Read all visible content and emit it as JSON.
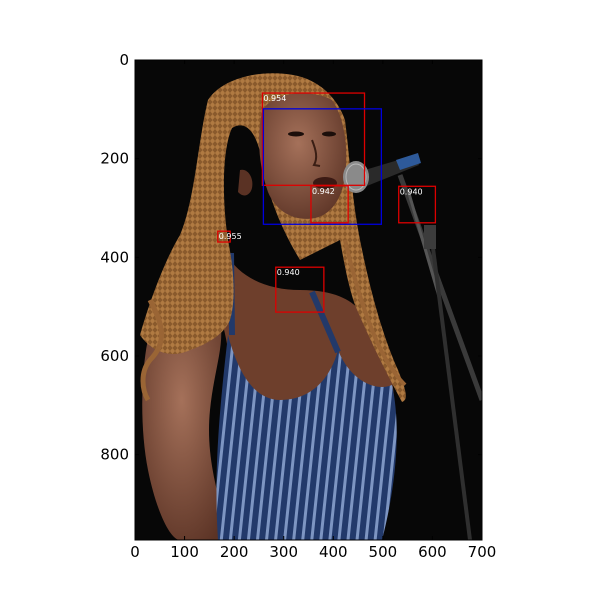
{
  "chart_data": {
    "type": "image-detection-plot",
    "image_content": "photo of a woman with long braided hair in a blue and white striped sleeveless dress singing into a microphone against a dark background",
    "xlim": [
      0,
      700
    ],
    "ylim": [
      973,
      0
    ],
    "xticks": [
      0,
      100,
      200,
      300,
      400,
      500,
      600,
      700
    ],
    "yticks": [
      0,
      200,
      400,
      600,
      800
    ],
    "xtick_labels": [
      "0",
      "100",
      "200",
      "300",
      "400",
      "500",
      "600",
      "700"
    ],
    "ytick_labels": [
      "0",
      "200",
      "400",
      "600",
      "800"
    ],
    "boxes": [
      {
        "x0": 257,
        "y0": 67,
        "x1": 463,
        "y1": 254,
        "color": "#dd0000",
        "label": "0.954"
      },
      {
        "x0": 259,
        "y0": 99,
        "x1": 497,
        "y1": 333,
        "color": "#0000dd",
        "label": ""
      },
      {
        "x0": 355,
        "y0": 255,
        "x1": 430,
        "y1": 330,
        "color": "#dd0000",
        "label": "0.942"
      },
      {
        "x0": 532,
        "y0": 256,
        "x1": 606,
        "y1": 330,
        "color": "#dd0000",
        "label": "0.940"
      },
      {
        "x0": 167,
        "y0": 347,
        "x1": 192,
        "y1": 369,
        "color": "#dd0000",
        "label": "0.955"
      },
      {
        "x0": 284,
        "y0": 420,
        "x1": 381,
        "y1": 511,
        "color": "#dd0000",
        "label": "0.940"
      }
    ]
  }
}
